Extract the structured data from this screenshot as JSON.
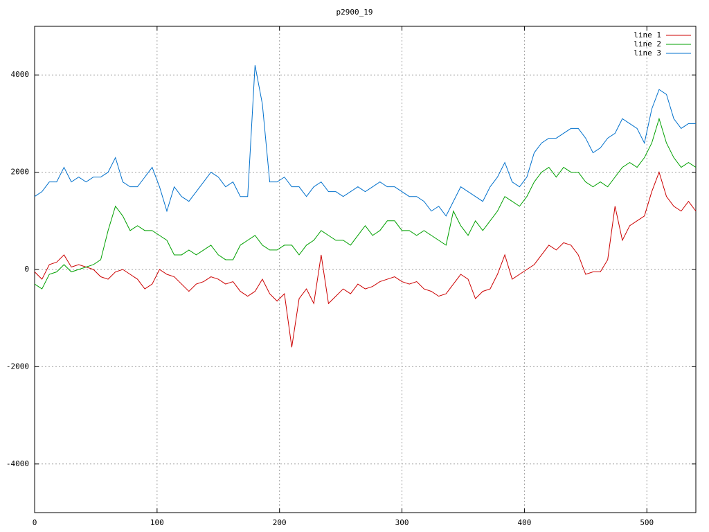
{
  "chart_data": {
    "type": "line",
    "title": "p2900_19",
    "x": [
      0,
      6,
      12,
      18,
      24,
      30,
      36,
      42,
      48,
      54,
      60,
      66,
      72,
      78,
      84,
      90,
      96,
      102,
      108,
      114,
      120,
      126,
      132,
      138,
      144,
      150,
      156,
      162,
      168,
      174,
      180,
      186,
      192,
      198,
      204,
      210,
      216,
      222,
      228,
      234,
      240,
      246,
      252,
      258,
      264,
      270,
      276,
      282,
      288,
      294,
      300,
      306,
      312,
      318,
      324,
      330,
      336,
      342,
      348,
      354,
      360,
      366,
      372,
      378,
      384,
      390,
      396,
      402,
      408,
      414,
      420,
      426,
      432,
      438,
      444,
      450,
      456,
      462,
      468,
      474,
      480,
      486,
      492,
      498,
      504,
      510,
      516,
      522,
      528,
      534,
      540
    ],
    "series": [
      {
        "name": "line 1",
        "color": "#cc0000",
        "values": [
          -50,
          -200,
          100,
          150,
          300,
          50,
          100,
          50,
          0,
          -150,
          -200,
          -50,
          0,
          -100,
          -200,
          -400,
          -300,
          0,
          -100,
          -150,
          -300,
          -450,
          -300,
          -250,
          -150,
          -200,
          -300,
          -250,
          -450,
          -550,
          -450,
          -200,
          -500,
          -650,
          -500,
          -1600,
          -600,
          -400,
          -700,
          300,
          -700,
          -550,
          -400,
          -500,
          -300,
          -400,
          -350,
          -250,
          -200,
          -150,
          -250,
          -300,
          -250,
          -400,
          -450,
          -550,
          -500,
          -300,
          -100,
          -200,
          -600,
          -450,
          -400,
          -100,
          300,
          -200,
          -100,
          0,
          100,
          300,
          500,
          400,
          550,
          500,
          300,
          -100,
          -50,
          -50,
          200,
          1300,
          600,
          900,
          1000,
          1100,
          1600,
          2000,
          1500,
          1300,
          1200,
          1400,
          1200
        ]
      },
      {
        "name": "line 2",
        "color": "#00a000",
        "values": [
          -300,
          -400,
          -100,
          -50,
          100,
          -50,
          0,
          50,
          100,
          200,
          800,
          1300,
          1100,
          800,
          900,
          800,
          800,
          700,
          600,
          300,
          300,
          400,
          300,
          400,
          500,
          300,
          200,
          200,
          500,
          600,
          700,
          500,
          400,
          400,
          500,
          500,
          300,
          500,
          600,
          800,
          700,
          600,
          600,
          500,
          700,
          900,
          700,
          800,
          1000,
          1000,
          800,
          800,
          700,
          800,
          700,
          600,
          500,
          1200,
          900,
          700,
          1000,
          800,
          1000,
          1200,
          1500,
          1400,
          1300,
          1500,
          1800,
          2000,
          2100,
          1900,
          2100,
          2000,
          2000,
          1800,
          1700,
          1800,
          1700,
          1900,
          2100,
          2200,
          2100,
          2300,
          2600,
          3100,
          2600,
          2300,
          2100,
          2200,
          2100
        ]
      },
      {
        "name": "line 3",
        "color": "#0070cc",
        "values": [
          1500,
          1600,
          1800,
          1800,
          2100,
          1800,
          1900,
          1800,
          1900,
          1900,
          2000,
          2300,
          1800,
          1700,
          1700,
          1900,
          2100,
          1700,
          1200,
          1700,
          1500,
          1400,
          1600,
          1800,
          2000,
          1900,
          1700,
          1800,
          1500,
          1500,
          4200,
          3400,
          1800,
          1800,
          1900,
          1700,
          1700,
          1500,
          1700,
          1800,
          1600,
          1600,
          1500,
          1600,
          1700,
          1600,
          1700,
          1800,
          1700,
          1700,
          1600,
          1500,
          1500,
          1400,
          1200,
          1300,
          1100,
          1400,
          1700,
          1600,
          1500,
          1400,
          1700,
          1900,
          2200,
          1800,
          1700,
          1900,
          2400,
          2600,
          2700,
          2700,
          2800,
          2900,
          2900,
          2700,
          2400,
          2500,
          2700,
          2800,
          3100,
          3000,
          2900,
          2600,
          3300,
          3700,
          3600,
          3100,
          2900,
          3000,
          3000
        ]
      }
    ],
    "xlim": [
      0,
      540
    ],
    "ylim": [
      -5000,
      5000
    ],
    "xticks": [
      0,
      100,
      200,
      300,
      400,
      500
    ],
    "yticks": [
      -4000,
      -2000,
      0,
      2000,
      4000
    ],
    "grid": true,
    "legend": "top-right"
  }
}
